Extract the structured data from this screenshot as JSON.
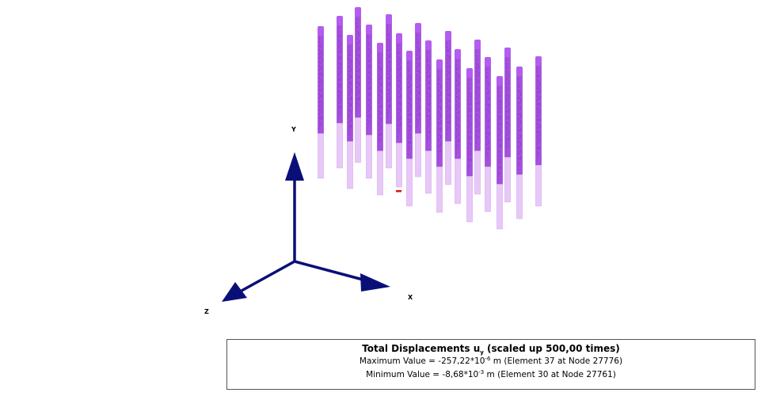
{
  "axes": {
    "x_label": "X",
    "y_label": "Y",
    "z_label": "Z"
  },
  "colors": {
    "axis": "#0a0f78",
    "pile_upper": "#a64fe0",
    "pile_lower": "#e8c8f7",
    "pile_edge": "#8a3ec4",
    "marker": "#e01010"
  },
  "legend": {
    "title_prefix": "Total Displacements u",
    "title_subscript": "y",
    "title_suffix": " (scaled up 500,00 times)",
    "max_prefix": "Maximum Value = -257,22*10",
    "max_exponent": "-6",
    "max_suffix": " m (Element 37 at Node 27776)",
    "min_prefix": "Minimum Value = -8,68*10",
    "min_exponent": "-3",
    "min_suffix": " m (Element 30 at Node 27761)"
  }
}
